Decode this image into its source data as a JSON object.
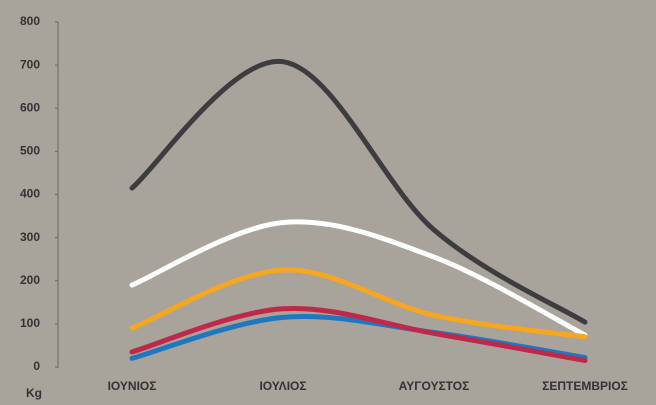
{
  "chart_data": {
    "type": "line",
    "y_label": "Kg",
    "categories": [
      "ΙΟΥΝΙΟΣ",
      "ΙΟΥΛΙΟΣ",
      "ΑΥΓΟΥΣΤΟΣ",
      "ΣΕΠΤΕΜΒΡΙΟΣ"
    ],
    "series": [
      {
        "color": "#3d3d3f",
        "values": [
          415,
          708,
          318,
          104
        ]
      },
      {
        "color": "#ffffff",
        "values": [
          190,
          335,
          255,
          74
        ]
      },
      {
        "color": "#f5a623",
        "values": [
          90,
          225,
          120,
          70
        ]
      },
      {
        "color": "#1f77c0",
        "values": [
          20,
          115,
          80,
          22
        ]
      },
      {
        "color": "#c0284a",
        "values": [
          35,
          135,
          78,
          15
        ]
      }
    ],
    "ylim": [
      0,
      800
    ],
    "yticks": [
      0,
      100,
      200,
      300,
      400,
      500,
      600,
      700,
      800
    ]
  }
}
